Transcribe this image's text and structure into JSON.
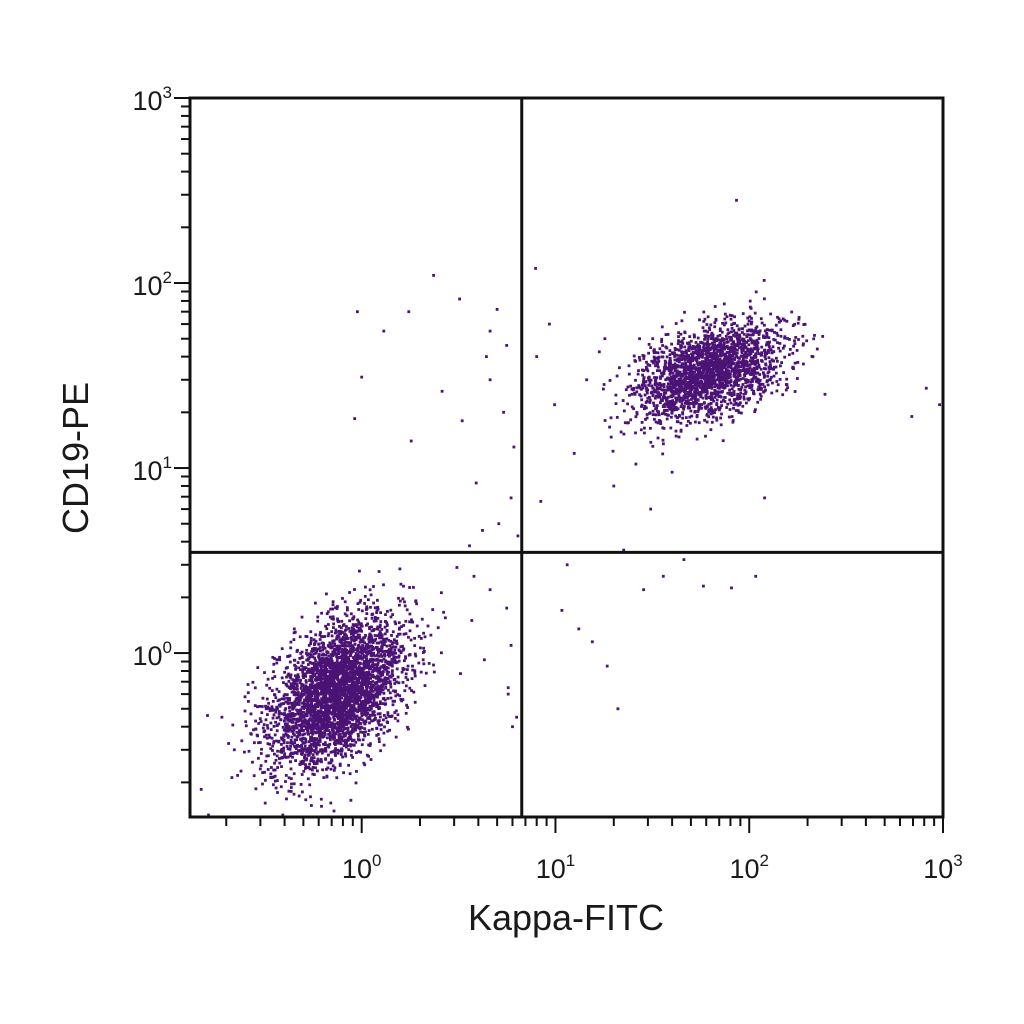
{
  "chart_data": {
    "type": "scatter",
    "xlabel": "Kappa-FITC",
    "ylabel": "CD19-PE",
    "xscale": "log",
    "yscale": "log",
    "xlim": [
      0.13,
      1000
    ],
    "ylim": [
      0.13,
      1000
    ],
    "x_ticks": [
      {
        "value": 1,
        "base": "10",
        "exp": "0"
      },
      {
        "value": 10,
        "base": "10",
        "exp": "1"
      },
      {
        "value": 100,
        "base": "10",
        "exp": "2"
      },
      {
        "value": 1000,
        "base": "10",
        "exp": "3"
      }
    ],
    "y_ticks": [
      {
        "value": 1,
        "base": "10",
        "exp": "0"
      },
      {
        "value": 10,
        "base": "10",
        "exp": "1"
      },
      {
        "value": 100,
        "base": "10",
        "exp": "2"
      },
      {
        "value": 1000,
        "base": "10",
        "exp": "3"
      }
    ],
    "quadrant_gates": {
      "x": 6.7,
      "y": 3.5
    },
    "point_color": "#4b1375",
    "line_color": "#111111",
    "populations": [
      {
        "center_x": 0.75,
        "center_y": 0.62,
        "spread_log_x": 0.17,
        "spread_log_y": 0.2,
        "count": 3600
      },
      {
        "center_x": 62,
        "center_y": 33,
        "spread_log_x": 0.19,
        "spread_log_y": 0.13,
        "count": 2200
      }
    ],
    "scattered_points": [
      [
        0.16,
        0.46
      ],
      [
        0.95,
        70
      ],
      [
        1.3,
        55
      ],
      [
        1.75,
        70
      ],
      [
        0.92,
        18.5
      ],
      [
        1.0,
        31
      ],
      [
        2.35,
        110
      ],
      [
        3.2,
        82
      ],
      [
        1.8,
        14
      ],
      [
        2.6,
        26
      ],
      [
        4.4,
        40
      ],
      [
        5.6,
        46
      ],
      [
        4.6,
        55
      ],
      [
        5.0,
        72
      ],
      [
        3.3,
        18
      ],
      [
        4.6,
        30
      ],
      [
        5.4,
        20
      ],
      [
        6.1,
        13
      ],
      [
        3.9,
        8.3
      ],
      [
        4.2,
        4.6
      ],
      [
        3.6,
        3.8
      ],
      [
        5.9,
        6.9
      ],
      [
        5.1,
        5.0
      ],
      [
        6.4,
        4.3
      ],
      [
        3.1,
        2.9
      ],
      [
        3.8,
        2.6
      ],
      [
        4.6,
        2.2
      ],
      [
        5.6,
        1.75
      ],
      [
        5.9,
        1.1
      ],
      [
        5.7,
        0.65
      ],
      [
        6.3,
        0.45
      ],
      [
        7.9,
        120
      ],
      [
        9.3,
        60
      ],
      [
        8.0,
        40
      ],
      [
        9.9,
        22
      ],
      [
        8.4,
        6.6
      ],
      [
        11.5,
        3.0
      ],
      [
        10.8,
        1.7
      ],
      [
        13.2,
        1.35
      ],
      [
        15.5,
        1.15
      ],
      [
        18.5,
        0.85
      ],
      [
        21.0,
        0.5
      ],
      [
        22.5,
        3.6
      ],
      [
        28.5,
        2.2
      ],
      [
        36.0,
        2.6
      ],
      [
        46.0,
        3.2
      ],
      [
        58.0,
        2.3
      ],
      [
        81.0,
        2.25
      ],
      [
        108.0,
        2.6
      ],
      [
        120.0,
        6.9
      ],
      [
        86.0,
        280
      ],
      [
        690.0,
        19
      ],
      [
        960.0,
        22
      ],
      [
        820.0,
        27
      ],
      [
        14.5,
        30
      ],
      [
        18.0,
        50
      ],
      [
        12.5,
        12
      ],
      [
        20.0,
        8.0
      ],
      [
        26.0,
        10.5
      ],
      [
        31.0,
        6.0
      ],
      [
        40.0,
        9.5
      ],
      [
        0.55,
        0.15
      ],
      [
        0.72,
        0.14
      ],
      [
        0.88,
        0.16
      ],
      [
        0.32,
        0.26
      ],
      [
        0.22,
        0.3
      ],
      [
        0.19,
        0.45
      ],
      [
        0.25,
        0.58
      ],
      [
        2.2,
        1.4
      ],
      [
        2.7,
        1.55
      ],
      [
        1.9,
        1.9
      ],
      [
        3.7,
        1.5
      ],
      [
        4.3,
        0.92
      ],
      [
        5.7,
        0.6
      ],
      [
        6.0,
        0.4
      ]
    ]
  }
}
